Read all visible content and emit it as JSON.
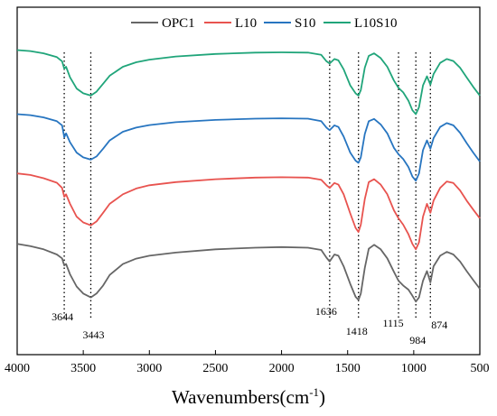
{
  "chart_data": {
    "type": "line",
    "xlabel": "Wavenumbers(cm",
    "xlabel_sup": "-1",
    "xlabel_close": ")",
    "ylabel": "",
    "xlim": [
      4000,
      500
    ],
    "x_reversed": true,
    "x_ticks": [
      4000,
      3500,
      3000,
      2500,
      2000,
      1500,
      1000,
      500
    ],
    "y_ticks_visible": false,
    "y_units": "relative transmittance (stacked, arbitrary units)",
    "ylim": [
      0,
      1
    ],
    "grid": false,
    "legend_position": "top",
    "series": [
      {
        "name": "OPC1",
        "color": "#666666",
        "points": [
          [
            4000,
            0.295
          ],
          [
            3900,
            0.288
          ],
          [
            3800,
            0.278
          ],
          [
            3700,
            0.262
          ],
          [
            3660,
            0.25
          ],
          [
            3644,
            0.228
          ],
          [
            3630,
            0.232
          ],
          [
            3600,
            0.2
          ],
          [
            3550,
            0.162
          ],
          [
            3500,
            0.14
          ],
          [
            3443,
            0.128
          ],
          [
            3400,
            0.14
          ],
          [
            3350,
            0.165
          ],
          [
            3300,
            0.198
          ],
          [
            3200,
            0.232
          ],
          [
            3100,
            0.249
          ],
          [
            3000,
            0.258
          ],
          [
            2800,
            0.268
          ],
          [
            2500,
            0.278
          ],
          [
            2200,
            0.283
          ],
          [
            2000,
            0.285
          ],
          [
            1800,
            0.283
          ],
          [
            1700,
            0.276
          ],
          [
            1660,
            0.252
          ],
          [
            1636,
            0.24
          ],
          [
            1600,
            0.262
          ],
          [
            1570,
            0.258
          ],
          [
            1530,
            0.225
          ],
          [
            1480,
            0.17
          ],
          [
            1440,
            0.13
          ],
          [
            1418,
            0.12
          ],
          [
            1400,
            0.14
          ],
          [
            1370,
            0.22
          ],
          [
            1340,
            0.28
          ],
          [
            1300,
            0.292
          ],
          [
            1250,
            0.278
          ],
          [
            1200,
            0.25
          ],
          [
            1150,
            0.208
          ],
          [
            1115,
            0.18
          ],
          [
            1080,
            0.165
          ],
          [
            1040,
            0.152
          ],
          [
            1010,
            0.133
          ],
          [
            984,
            0.115
          ],
          [
            960,
            0.128
          ],
          [
            930,
            0.18
          ],
          [
            900,
            0.21
          ],
          [
            874,
            0.175
          ],
          [
            850,
            0.225
          ],
          [
            800,
            0.258
          ],
          [
            750,
            0.27
          ],
          [
            700,
            0.262
          ],
          [
            650,
            0.24
          ],
          [
            600,
            0.21
          ],
          [
            550,
            0.182
          ],
          [
            500,
            0.155
          ]
        ]
      },
      {
        "name": "L10",
        "color": "#e8534f",
        "points": [
          [
            4000,
            0.515
          ],
          [
            3900,
            0.51
          ],
          [
            3800,
            0.5
          ],
          [
            3700,
            0.486
          ],
          [
            3660,
            0.47
          ],
          [
            3644,
            0.442
          ],
          [
            3630,
            0.45
          ],
          [
            3600,
            0.42
          ],
          [
            3550,
            0.38
          ],
          [
            3500,
            0.362
          ],
          [
            3443,
            0.353
          ],
          [
            3400,
            0.365
          ],
          [
            3350,
            0.392
          ],
          [
            3300,
            0.42
          ],
          [
            3200,
            0.45
          ],
          [
            3100,
            0.468
          ],
          [
            3000,
            0.478
          ],
          [
            2800,
            0.488
          ],
          [
            2500,
            0.497
          ],
          [
            2200,
            0.502
          ],
          [
            2000,
            0.503
          ],
          [
            1800,
            0.502
          ],
          [
            1700,
            0.495
          ],
          [
            1660,
            0.478
          ],
          [
            1636,
            0.47
          ],
          [
            1600,
            0.485
          ],
          [
            1570,
            0.48
          ],
          [
            1530,
            0.45
          ],
          [
            1480,
            0.39
          ],
          [
            1440,
            0.345
          ],
          [
            1418,
            0.332
          ],
          [
            1400,
            0.355
          ],
          [
            1370,
            0.435
          ],
          [
            1340,
            0.488
          ],
          [
            1300,
            0.497
          ],
          [
            1250,
            0.48
          ],
          [
            1200,
            0.45
          ],
          [
            1150,
            0.4
          ],
          [
            1115,
            0.375
          ],
          [
            1080,
            0.355
          ],
          [
            1040,
            0.325
          ],
          [
            1010,
            0.295
          ],
          [
            984,
            0.278
          ],
          [
            960,
            0.3
          ],
          [
            930,
            0.38
          ],
          [
            900,
            0.42
          ],
          [
            874,
            0.392
          ],
          [
            850,
            0.43
          ],
          [
            800,
            0.47
          ],
          [
            750,
            0.49
          ],
          [
            700,
            0.485
          ],
          [
            650,
            0.462
          ],
          [
            600,
            0.43
          ],
          [
            550,
            0.402
          ],
          [
            500,
            0.375
          ]
        ]
      },
      {
        "name": "S10",
        "color": "#2775c0",
        "points": [
          [
            4000,
            0.7
          ],
          [
            3900,
            0.697
          ],
          [
            3800,
            0.69
          ],
          [
            3700,
            0.678
          ],
          [
            3660,
            0.665
          ],
          [
            3644,
            0.628
          ],
          [
            3630,
            0.64
          ],
          [
            3600,
            0.612
          ],
          [
            3550,
            0.58
          ],
          [
            3500,
            0.565
          ],
          [
            3443,
            0.558
          ],
          [
            3400,
            0.568
          ],
          [
            3350,
            0.592
          ],
          [
            3300,
            0.618
          ],
          [
            3200,
            0.645
          ],
          [
            3100,
            0.658
          ],
          [
            3000,
            0.666
          ],
          [
            2800,
            0.675
          ],
          [
            2500,
            0.682
          ],
          [
            2200,
            0.686
          ],
          [
            2000,
            0.687
          ],
          [
            1800,
            0.686
          ],
          [
            1700,
            0.678
          ],
          [
            1660,
            0.658
          ],
          [
            1636,
            0.65
          ],
          [
            1600,
            0.665
          ],
          [
            1570,
            0.66
          ],
          [
            1530,
            0.63
          ],
          [
            1480,
            0.58
          ],
          [
            1440,
            0.555
          ],
          [
            1418,
            0.548
          ],
          [
            1400,
            0.565
          ],
          [
            1370,
            0.638
          ],
          [
            1340,
            0.678
          ],
          [
            1300,
            0.685
          ],
          [
            1250,
            0.668
          ],
          [
            1200,
            0.64
          ],
          [
            1150,
            0.595
          ],
          [
            1115,
            0.575
          ],
          [
            1080,
            0.56
          ],
          [
            1040,
            0.535
          ],
          [
            1010,
            0.505
          ],
          [
            984,
            0.492
          ],
          [
            960,
            0.515
          ],
          [
            930,
            0.588
          ],
          [
            900,
            0.618
          ],
          [
            874,
            0.592
          ],
          [
            850,
            0.625
          ],
          [
            800,
            0.66
          ],
          [
            750,
            0.672
          ],
          [
            700,
            0.665
          ],
          [
            650,
            0.642
          ],
          [
            600,
            0.61
          ],
          [
            550,
            0.58
          ],
          [
            500,
            0.552
          ]
        ]
      },
      {
        "name": "L10S10",
        "color": "#20a57a",
        "points": [
          [
            4000,
            0.9
          ],
          [
            3900,
            0.897
          ],
          [
            3800,
            0.89
          ],
          [
            3700,
            0.878
          ],
          [
            3660,
            0.865
          ],
          [
            3644,
            0.842
          ],
          [
            3630,
            0.848
          ],
          [
            3600,
            0.815
          ],
          [
            3550,
            0.78
          ],
          [
            3500,
            0.765
          ],
          [
            3443,
            0.758
          ],
          [
            3400,
            0.77
          ],
          [
            3350,
            0.795
          ],
          [
            3300,
            0.82
          ],
          [
            3200,
            0.848
          ],
          [
            3100,
            0.862
          ],
          [
            3000,
            0.87
          ],
          [
            2800,
            0.88
          ],
          [
            2500,
            0.888
          ],
          [
            2200,
            0.892
          ],
          [
            2000,
            0.893
          ],
          [
            1800,
            0.892
          ],
          [
            1700,
            0.885
          ],
          [
            1660,
            0.865
          ],
          [
            1636,
            0.858
          ],
          [
            1600,
            0.872
          ],
          [
            1570,
            0.868
          ],
          [
            1530,
            0.84
          ],
          [
            1480,
            0.79
          ],
          [
            1440,
            0.765
          ],
          [
            1418,
            0.758
          ],
          [
            1400,
            0.775
          ],
          [
            1370,
            0.845
          ],
          [
            1340,
            0.882
          ],
          [
            1300,
            0.89
          ],
          [
            1250,
            0.875
          ],
          [
            1200,
            0.848
          ],
          [
            1150,
            0.805
          ],
          [
            1115,
            0.782
          ],
          [
            1080,
            0.768
          ],
          [
            1040,
            0.742
          ],
          [
            1010,
            0.712
          ],
          [
            984,
            0.7
          ],
          [
            960,
            0.722
          ],
          [
            930,
            0.79
          ],
          [
            900,
            0.818
          ],
          [
            874,
            0.792
          ],
          [
            850,
            0.825
          ],
          [
            800,
            0.86
          ],
          [
            750,
            0.872
          ],
          [
            700,
            0.866
          ],
          [
            650,
            0.845
          ],
          [
            600,
            0.815
          ],
          [
            550,
            0.785
          ],
          [
            500,
            0.758
          ]
        ]
      }
    ],
    "reference_lines": [
      {
        "x": 3644,
        "label": "3644"
      },
      {
        "x": 3443,
        "label": "3443"
      },
      {
        "x": 1636,
        "label": "1636"
      },
      {
        "x": 1418,
        "label": "1418"
      },
      {
        "x": 1115,
        "label": "1115"
      },
      {
        "x": 984,
        "label": "984"
      },
      {
        "x": 874,
        "label": "874"
      }
    ]
  }
}
